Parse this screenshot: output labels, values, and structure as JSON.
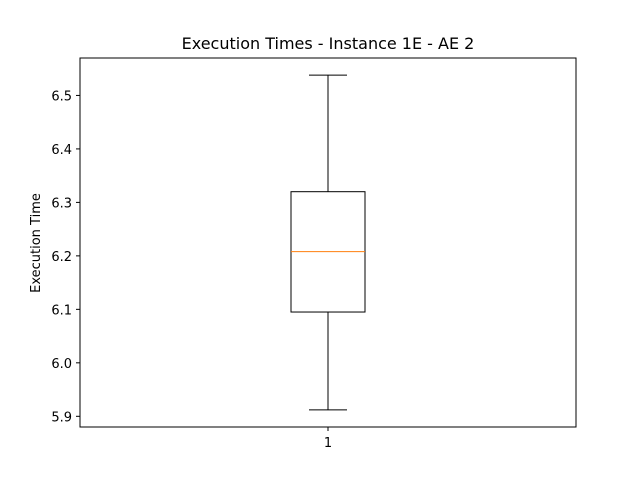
{
  "chart_data": {
    "type": "box",
    "title": "Execution Times - Instance 1E - AE 2",
    "xlabel": "",
    "ylabel": "Execution Time",
    "categories": [
      "1"
    ],
    "boxes": [
      {
        "category": "1",
        "whisker_low": 5.912,
        "q1": 6.095,
        "median": 6.208,
        "q3": 6.32,
        "whisker_high": 6.538
      }
    ],
    "ylim": [
      5.88,
      6.57
    ],
    "yticks": [
      "5.9",
      "6.0",
      "6.1",
      "6.2",
      "6.3",
      "6.4",
      "6.5"
    ],
    "grid": false,
    "colors": {
      "box": "#000000",
      "median": "#ff7f0e",
      "axes": "#000000"
    }
  }
}
